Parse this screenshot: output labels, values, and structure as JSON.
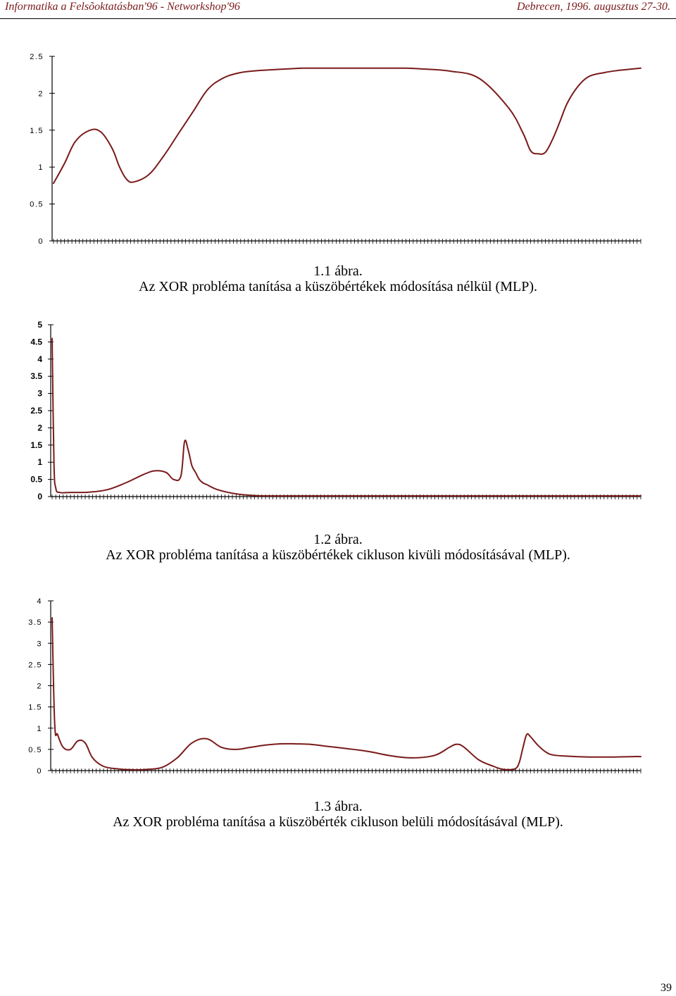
{
  "header": {
    "left": "Informatika a Felsõoktatásban'96 - Networkshop'96",
    "right": "Debrecen, 1996. augusztus 27-30."
  },
  "colors": {
    "line": "#7a1a1a",
    "axis": "#000000"
  },
  "figures": [
    {
      "number": "1.1 ábra.",
      "caption": "Az XOR probléma tanítása a küszöbértékek módosítása nélkül (MLP)."
    },
    {
      "number": "1.2 ábra.",
      "caption": "Az XOR probléma tanítása a küszöbértékek cikluson kivüli módosításával (MLP)."
    },
    {
      "number": "1.3 ábra.",
      "caption": "Az XOR probléma tanítása a küszöbérték cikluson belüli módosításával (MLP)."
    }
  ],
  "chart_data": [
    {
      "type": "line",
      "ylim": [
        0,
        2.5
      ],
      "yticks": [
        "0",
        "0.5",
        "1",
        "1.5",
        "2",
        "2.5"
      ],
      "ytick_values": [
        0,
        0.5,
        1,
        1.5,
        2,
        2.5
      ],
      "bold_ticks": false,
      "x_count": 160,
      "series": [
        {
          "x": [
            0,
            3,
            6,
            10,
            13,
            16,
            18,
            20,
            22,
            26,
            30,
            34,
            38,
            42,
            46,
            50,
            54,
            60,
            64,
            68,
            72,
            76,
            80,
            84,
            88,
            92,
            96,
            100,
            108,
            116,
            124,
            128,
            130,
            132,
            134,
            136,
            138,
            140,
            143,
            146,
            150,
            154,
            158,
            160
          ],
          "y": [
            0.78,
            1.05,
            1.35,
            1.5,
            1.47,
            1.25,
            1.0,
            0.83,
            0.8,
            0.9,
            1.15,
            1.45,
            1.75,
            2.05,
            2.2,
            2.27,
            2.3,
            2.32,
            2.33,
            2.34,
            2.34,
            2.34,
            2.34,
            2.34,
            2.34,
            2.34,
            2.34,
            2.33,
            2.3,
            2.2,
            1.8,
            1.45,
            1.22,
            1.18,
            1.2,
            1.38,
            1.62,
            1.87,
            2.1,
            2.23,
            2.28,
            2.31,
            2.33,
            2.34
          ]
        }
      ]
    },
    {
      "type": "line",
      "ylim": [
        0,
        5
      ],
      "yticks": [
        "0",
        "0.5",
        "1",
        "1.5",
        "2",
        "2.5",
        "3",
        "3.5",
        "4",
        "4.5",
        "5"
      ],
      "ytick_values": [
        0,
        0.5,
        1,
        1.5,
        2,
        2.5,
        3,
        3.5,
        4,
        4.5,
        5
      ],
      "bold_ticks": true,
      "x_count": 160,
      "series": [
        {
          "x": [
            0,
            0.5,
            1,
            2,
            5,
            10,
            15,
            20,
            25,
            28,
            31,
            33,
            35,
            36,
            37,
            38,
            39,
            40,
            41,
            42,
            45,
            50,
            55,
            60,
            70,
            80,
            100,
            120,
            140,
            160
          ],
          "y": [
            4.6,
            1.0,
            0.25,
            0.12,
            0.12,
            0.13,
            0.2,
            0.4,
            0.65,
            0.75,
            0.7,
            0.5,
            0.6,
            1.6,
            1.35,
            0.9,
            0.7,
            0.5,
            0.4,
            0.35,
            0.2,
            0.08,
            0.03,
            0.02,
            0.02,
            0.02,
            0.02,
            0.02,
            0.02,
            0.02
          ]
        }
      ]
    },
    {
      "type": "line",
      "ylim": [
        0,
        4
      ],
      "yticks": [
        "0",
        "0.5",
        "1",
        "1.5",
        "2",
        "2.5",
        "3",
        "3.5",
        "4"
      ],
      "ytick_values": [
        0,
        0.5,
        1,
        1.5,
        2,
        2.5,
        3,
        3.5,
        4
      ],
      "bold_ticks": false,
      "x_count": 160,
      "series": [
        {
          "x": [
            0,
            0.7,
            1.5,
            3,
            5,
            7,
            9,
            11,
            14,
            18,
            22,
            26,
            30,
            34,
            38,
            42,
            46,
            50,
            54,
            58,
            62,
            66,
            70,
            74,
            80,
            86,
            92,
            98,
            104,
            108,
            110,
            112,
            116,
            120,
            122,
            124,
            126,
            127,
            128,
            129,
            130,
            132,
            134,
            136,
            140,
            146,
            152,
            158,
            160
          ],
          "y": [
            3.6,
            1.1,
            0.85,
            0.55,
            0.5,
            0.7,
            0.65,
            0.3,
            0.1,
            0.04,
            0.02,
            0.03,
            0.08,
            0.3,
            0.65,
            0.75,
            0.55,
            0.5,
            0.55,
            0.6,
            0.63,
            0.63,
            0.62,
            0.58,
            0.52,
            0.45,
            0.35,
            0.3,
            0.36,
            0.55,
            0.62,
            0.55,
            0.25,
            0.1,
            0.04,
            0.02,
            0.05,
            0.2,
            0.55,
            0.85,
            0.8,
            0.6,
            0.45,
            0.37,
            0.34,
            0.32,
            0.32,
            0.33,
            0.33
          ]
        }
      ]
    }
  ],
  "page_number": "39"
}
